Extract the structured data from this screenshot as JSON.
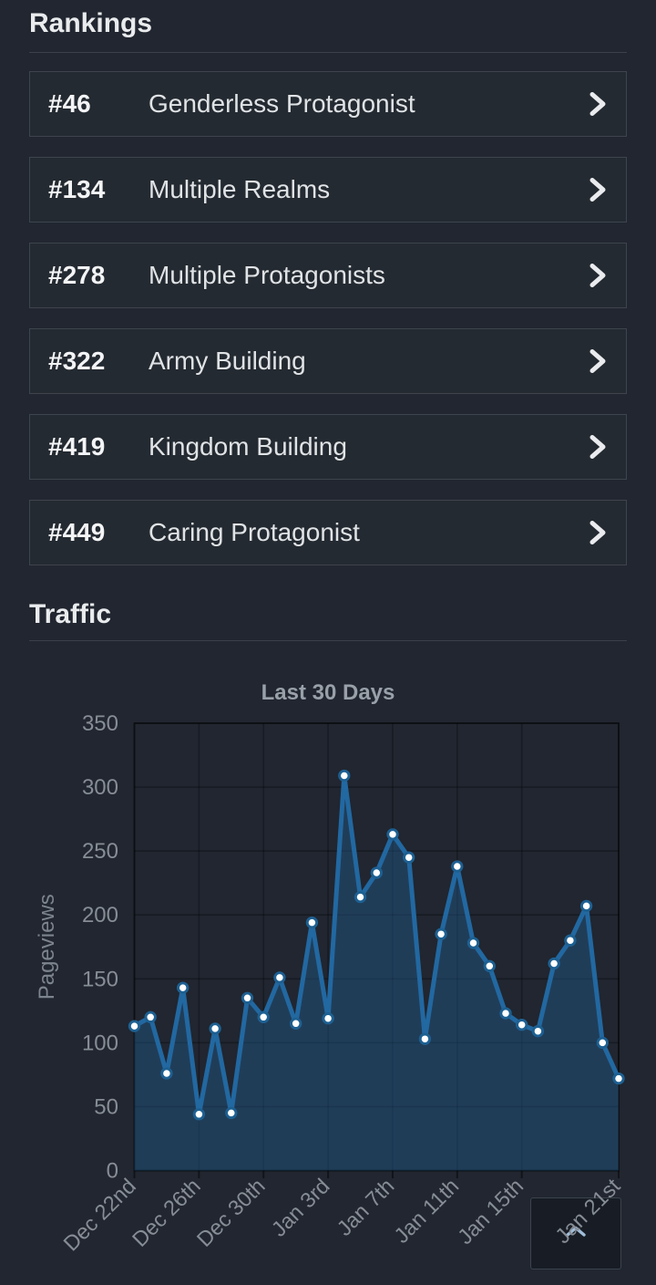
{
  "rankings": {
    "title": "Rankings",
    "items": [
      {
        "rank": "#46",
        "label": "Genderless Protagonist"
      },
      {
        "rank": "#134",
        "label": "Multiple Realms"
      },
      {
        "rank": "#278",
        "label": "Multiple Protagonists"
      },
      {
        "rank": "#322",
        "label": "Army Building"
      },
      {
        "rank": "#419",
        "label": "Kingdom Building"
      },
      {
        "rank": "#449",
        "label": "Caring Protagonist"
      }
    ]
  },
  "traffic": {
    "title": "Traffic"
  },
  "chart_data": {
    "type": "area",
    "title": "Last 30 Days",
    "xlabel": "",
    "ylabel": "Pageviews",
    "ylim": [
      0,
      350
    ],
    "y_ticks": [
      0,
      50,
      100,
      150,
      200,
      250,
      300,
      350
    ],
    "grid": true,
    "legend_position": "none",
    "x_tick_labels": [
      "Dec 22nd",
      "Dec 26th",
      "Dec 30th",
      "Jan 3rd",
      "Jan 7th",
      "Jan 11th",
      "Jan 15th",
      "Jan 21st"
    ],
    "x_tick_indices": [
      0,
      4,
      8,
      12,
      16,
      20,
      24,
      30
    ],
    "values": [
      113,
      120,
      76,
      143,
      44,
      111,
      45,
      135,
      120,
      151,
      115,
      194,
      119,
      309,
      214,
      233,
      263,
      245,
      103,
      185,
      238,
      178,
      160,
      123,
      114,
      109,
      162,
      180,
      207,
      100,
      72
    ],
    "colors": {
      "line": "#2268a1",
      "point_ring": "#1d6092",
      "point_fill": "#ffffff",
      "fill": "rgba(32,100,156,0.38)",
      "grid_line": "rgba(0,0,0,0.28)",
      "axis_border": "rgba(0,0,0,0.45)",
      "tick_label": "#878d95",
      "axis_label": "#7d848d",
      "title": "#99a0a8"
    }
  },
  "scroll_top_button": {
    "icon": "chevron-up",
    "icon_color": "#9fbdd8"
  }
}
